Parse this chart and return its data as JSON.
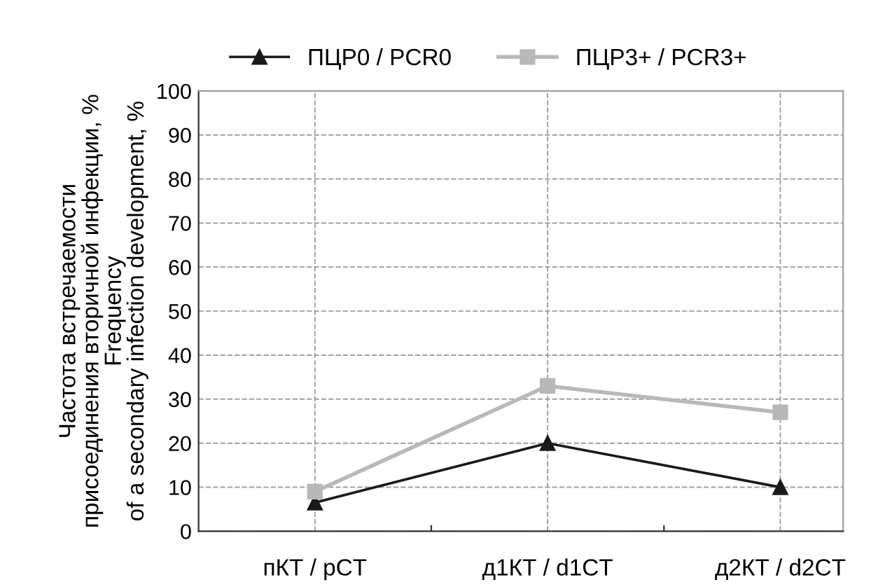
{
  "chart_data": {
    "type": "line",
    "ylabel": "Частота встречаемости\nприсоединения вторичной инфекции, %\nFrequency\nof a secondary infection development, %",
    "categories": [
      "пКТ / pCT",
      "д1КТ / d1CT",
      "д2КТ / d2CT"
    ],
    "series": [
      {
        "name": "ПЦР0 / PCR0",
        "color": "#1a1a1a",
        "marker": "triangle",
        "values": [
          6.5,
          20,
          10
        ]
      },
      {
        "name": "ПЦР3+ / PCR3+",
        "color": "#b8b8b8",
        "marker": "square",
        "values": [
          9,
          33,
          27
        ]
      }
    ],
    "ylim": [
      0,
      100
    ],
    "yticks": [
      0,
      10,
      20,
      30,
      40,
      50,
      60,
      70,
      80,
      90,
      100
    ],
    "grid": true,
    "legend": "top",
    "line_style": "solid"
  }
}
